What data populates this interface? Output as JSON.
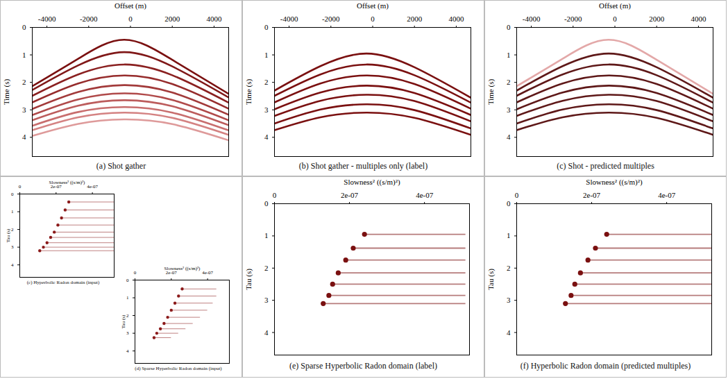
{
  "chart_data": [
    {
      "type": "line",
      "title": "(a) Shot gather",
      "xlabel": "Offset (m)",
      "ylabel": "Time (s)",
      "xlim": [
        -4700,
        4700
      ],
      "ylim": [
        0,
        4.7
      ],
      "xticks": [
        -4000,
        -2000,
        0,
        2000,
        4000
      ],
      "yticks": [
        0,
        1,
        2,
        3,
        4
      ],
      "x": [
        -4700,
        -2500,
        -300,
        2000,
        4700
      ],
      "series": [
        {
          "color": "#7a1010",
          "values": [
            2.14,
            1.14,
            0.45,
            1.18,
            2.42
          ]
        },
        {
          "color": "#801818",
          "values": [
            2.28,
            1.38,
            0.9,
            1.42,
            2.55
          ]
        },
        {
          "color": "#8a2020",
          "values": [
            2.49,
            1.71,
            1.35,
            1.74,
            2.74
          ]
        },
        {
          "color": "#962c2c",
          "values": [
            2.73,
            2.04,
            1.75,
            2.06,
            2.96
          ]
        },
        {
          "color": "#a23a3a",
          "values": [
            2.97,
            2.35,
            2.1,
            2.37,
            3.18
          ]
        },
        {
          "color": "#b04a4a",
          "values": [
            3.19,
            2.62,
            2.4,
            2.64,
            3.38
          ]
        },
        {
          "color": "#bc5c5c",
          "values": [
            3.38,
            2.85,
            2.65,
            2.87,
            3.56
          ]
        },
        {
          "color": "#c86e6e",
          "values": [
            3.58,
            3.08,
            2.9,
            3.1,
            3.75
          ]
        },
        {
          "color": "#d48282",
          "values": [
            3.74,
            3.27,
            3.1,
            3.29,
            3.91
          ]
        },
        {
          "color": "#de9a9a",
          "values": [
            3.95,
            3.51,
            3.35,
            3.52,
            4.11
          ]
        }
      ]
    },
    {
      "type": "line",
      "title": "(b) Shot gather - multiples only (label)",
      "xlabel": "Offset (m)",
      "ylabel": "Time (s)",
      "xlim": [
        -4700,
        4700
      ],
      "ylim": [
        0,
        4.7
      ],
      "xticks": [
        -4000,
        -2000,
        0,
        2000,
        4000
      ],
      "yticks": [
        0,
        1,
        2,
        3,
        4
      ],
      "x": [
        -4700,
        -2500,
        -300,
        2000,
        4700
      ],
      "series": [
        {
          "color": "#7a1010",
          "values": [
            2.3,
            1.41,
            0.95,
            1.45,
            2.56
          ]
        },
        {
          "color": "#7a1010",
          "values": [
            2.49,
            1.71,
            1.35,
            1.74,
            2.74
          ]
        },
        {
          "color": "#7a1010",
          "values": [
            2.73,
            2.04,
            1.75,
            2.06,
            2.96
          ]
        },
        {
          "color": "#7a1010",
          "values": [
            2.98,
            2.37,
            2.12,
            2.39,
            3.19
          ]
        },
        {
          "color": "#7a1010",
          "values": [
            3.22,
            2.67,
            2.45,
            2.68,
            3.42
          ]
        },
        {
          "color": "#7a1010",
          "values": [
            3.5,
            2.99,
            2.8,
            3.01,
            3.68
          ]
        },
        {
          "color": "#7a1010",
          "values": [
            3.74,
            3.27,
            3.1,
            3.29,
            3.91
          ]
        }
      ]
    },
    {
      "type": "line",
      "title": "(c) Shot - predicted multiples",
      "xlabel": "Offset (m)",
      "ylabel": "Time (s)",
      "xlim": [
        -4700,
        4700
      ],
      "ylim": [
        0,
        4.7
      ],
      "xticks": [
        -4000,
        -2000,
        0,
        2000,
        4000
      ],
      "yticks": [
        0,
        1,
        2,
        3,
        4
      ],
      "x": [
        -4700,
        -2500,
        -300,
        2000,
        4700
      ],
      "series": [
        {
          "color": "#e3a8a8",
          "values": [
            2.14,
            1.14,
            0.45,
            1.18,
            2.42
          ]
        },
        {
          "color": "#5e1818",
          "values": [
            2.3,
            1.41,
            0.95,
            1.45,
            2.56
          ]
        },
        {
          "color": "#5e1818",
          "values": [
            2.49,
            1.71,
            1.35,
            1.74,
            2.74
          ]
        },
        {
          "color": "#5e1818",
          "values": [
            2.73,
            2.04,
            1.75,
            2.06,
            2.96
          ]
        },
        {
          "color": "#5e1818",
          "values": [
            2.98,
            2.37,
            2.12,
            2.39,
            3.19
          ]
        },
        {
          "color": "#5e1818",
          "values": [
            3.22,
            2.67,
            2.45,
            2.68,
            3.42
          ]
        },
        {
          "color": "#5e1818",
          "values": [
            3.5,
            2.99,
            2.8,
            3.01,
            3.68
          ]
        },
        {
          "color": "#5e1818",
          "values": [
            3.74,
            3.27,
            3.1,
            3.29,
            3.91
          ]
        }
      ]
    },
    {
      "type": "scatter",
      "title": "(c) Hyperbolic Radon domain (input)",
      "xlabel": "Slowness² ((s/m)²)",
      "ylabel": "Tau (s)",
      "xlim": [
        0,
        5.2e-07
      ],
      "ylim": [
        0,
        4.7
      ],
      "xticks": [
        0,
        {
          "value": 2e-07,
          "label": "2e-07"
        },
        {
          "value": 4e-07,
          "label": "4e-07"
        }
      ],
      "yticks": [
        0,
        1,
        2,
        3,
        4
      ],
      "color": "#8b1a1a",
      "x": [
        2.7e-07,
        2.5e-07,
        2.3e-07,
        2.1e-07,
        1.9e-07,
        1.7e-07,
        1.5e-07,
        1.3e-07,
        1.1e-07
      ],
      "values": [
        0.45,
        0.9,
        1.35,
        1.75,
        2.15,
        2.45,
        2.75,
        3.0,
        3.2
      ],
      "x_end": [
        5.2e-07,
        5.2e-07,
        5.2e-07,
        5.2e-07,
        5.2e-07,
        5.2e-07,
        5.2e-07,
        5.2e-07,
        5.2e-07
      ]
    },
    {
      "type": "scatter",
      "title": "(d) Sparse Hyperbolic Radon domain (input)",
      "xlabel": "Slowness² ((s/m)²)",
      "ylabel": "Tau (s)",
      "xlim": [
        0,
        5.2e-07
      ],
      "ylim": [
        0,
        4.7
      ],
      "xticks": [
        0,
        {
          "value": 2e-07,
          "label": "2e-07"
        },
        {
          "value": 4e-07,
          "label": "4e-07"
        }
      ],
      "yticks": [
        0,
        1,
        2,
        3,
        4
      ],
      "color": "#8b1a1a",
      "x": [
        2.6e-07,
        2.4e-07,
        2.2e-07,
        2e-07,
        1.8e-07,
        1.6e-07,
        1.4e-07,
        1.2e-07,
        1.05e-07
      ],
      "values": [
        0.5,
        0.9,
        1.3,
        1.7,
        2.1,
        2.45,
        2.75,
        3.0,
        3.25
      ],
      "x_end": [
        4.5e-07,
        4.5e-07,
        4.3e-07,
        4e-07,
        3.6e-07,
        3.2e-07,
        2.8e-07,
        2.4e-07,
        2e-07
      ]
    },
    {
      "type": "scatter",
      "title": "(e) Sparse Hyperbolic Radon domain (label)",
      "xlabel": "Slowness² ((s/m)²)",
      "ylabel": "Tau (s)",
      "xlim": [
        0,
        5.2e-07
      ],
      "ylim": [
        0,
        4.7
      ],
      "xticks": [
        0,
        {
          "value": 2e-07,
          "label": "2e-07"
        },
        {
          "value": 4e-07,
          "label": "4e-07"
        }
      ],
      "yticks": [
        0,
        1,
        2,
        3,
        4
      ],
      "color": "#7a1010",
      "x": [
        2.4e-07,
        2.1e-07,
        1.9e-07,
        1.7e-07,
        1.55e-07,
        1.45e-07,
        1.3e-07
      ],
      "values": [
        0.95,
        1.38,
        1.75,
        2.15,
        2.5,
        2.85,
        3.1
      ],
      "x_end": [
        5.1e-07,
        5.1e-07,
        5.1e-07,
        5.1e-07,
        5.1e-07,
        5.1e-07,
        5.1e-07
      ]
    },
    {
      "type": "scatter",
      "title": "(f) Hyperbolic Radon domain (predicted multiples)",
      "xlabel": "Slowness² ((s/m)²)",
      "ylabel": "Tau (s)",
      "xlim": [
        0,
        5.2e-07
      ],
      "ylim": [
        0,
        4.7
      ],
      "xticks": [
        0,
        {
          "value": 2e-07,
          "label": "2e-07"
        },
        {
          "value": 4e-07,
          "label": "4e-07"
        }
      ],
      "yticks": [
        0,
        1,
        2,
        3,
        4
      ],
      "color": "#7a1010",
      "x": [
        2.4e-07,
        2.1e-07,
        1.9e-07,
        1.7e-07,
        1.55e-07,
        1.45e-07,
        1.3e-07
      ],
      "values": [
        0.95,
        1.38,
        1.75,
        2.15,
        2.5,
        2.85,
        3.1
      ],
      "x_end": [
        5.2e-07,
        5.2e-07,
        5.2e-07,
        5.2e-07,
        5.2e-07,
        5.2e-07,
        5.2e-07
      ]
    }
  ]
}
